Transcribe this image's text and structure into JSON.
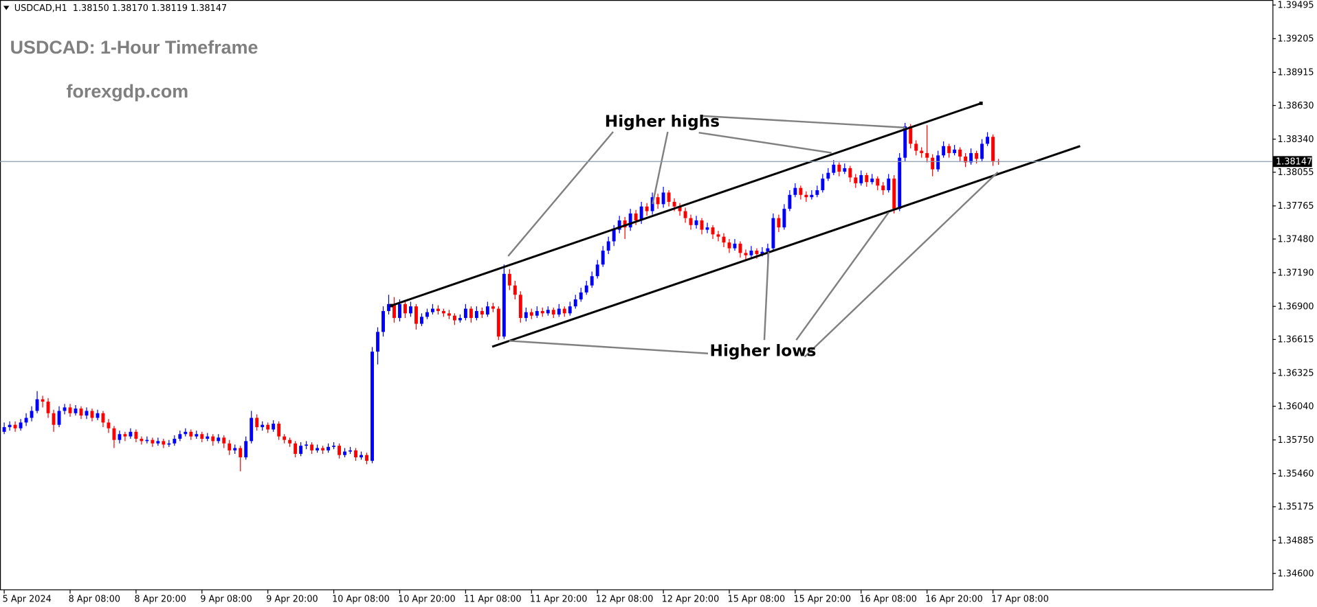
{
  "chart_data": {
    "type": "candlestick",
    "symbol_header": "USDCAD,H1  1.38150 1.38170 1.38119 1.38147",
    "title": "USDCAD: 1-Hour Timeframe",
    "subtitle": "forexgdp.com",
    "annotations": [
      "Higher highs",
      "Higher lows"
    ],
    "current_price": 1.38147,
    "up_color": "#0000ff",
    "down_color": "#ff0000",
    "ylim": [
      1.34456,
      1.39538
    ],
    "yticks": [
      1.39495,
      1.39205,
      1.38915,
      {
        "value": 1.3863,
        "label": "1.38630"
      },
      {
        "value": 1.3834,
        "label": "1.38340"
      },
      1.38055,
      1.37765,
      {
        "value": 1.3748,
        "label": "1.37480"
      },
      {
        "value": 1.3719,
        "label": "1.37190"
      },
      {
        "value": 1.369,
        "label": "1.36900"
      },
      1.36615,
      1.36325,
      {
        "value": 1.3604,
        "label": "1.36040"
      },
      {
        "value": 1.3575,
        "label": "1.35750"
      },
      {
        "value": 1.3546,
        "label": "1.35460"
      },
      1.35175,
      1.34885,
      {
        "value": 1.346,
        "label": "1.34600"
      }
    ],
    "categories": [
      "5 Apr 2024",
      null,
      null,
      null,
      null,
      null,
      null,
      null,
      null,
      null,
      null,
      null,
      "8 Apr 08:00",
      null,
      null,
      null,
      null,
      null,
      null,
      null,
      null,
      null,
      null,
      null,
      "8 Apr 20:00",
      null,
      null,
      null,
      null,
      null,
      null,
      null,
      null,
      null,
      null,
      null,
      "9 Apr 08:00",
      null,
      null,
      null,
      null,
      null,
      null,
      null,
      null,
      null,
      null,
      null,
      "9 Apr 20:00",
      null,
      null,
      null,
      null,
      null,
      null,
      null,
      null,
      null,
      null,
      null,
      "10 Apr 08:00",
      null,
      null,
      null,
      null,
      null,
      null,
      null,
      null,
      null,
      null,
      null,
      "10 Apr 20:00",
      null,
      null,
      null,
      null,
      null,
      null,
      null,
      null,
      null,
      null,
      null,
      "11 Apr 08:00",
      null,
      null,
      null,
      null,
      null,
      null,
      null,
      null,
      null,
      null,
      null,
      "11 Apr 20:00",
      null,
      null,
      null,
      null,
      null,
      null,
      null,
      null,
      null,
      null,
      null,
      "12 Apr 08:00",
      null,
      null,
      null,
      null,
      null,
      null,
      null,
      null,
      null,
      null,
      null,
      "12 Apr 20:00",
      null,
      null,
      null,
      null,
      null,
      null,
      null,
      null,
      null,
      null,
      null,
      "15 Apr 08:00",
      null,
      null,
      null,
      null,
      null,
      null,
      null,
      null,
      null,
      null,
      null,
      "15 Apr 20:00",
      null,
      null,
      null,
      null,
      null,
      null,
      null,
      null,
      null,
      null,
      null,
      "16 Apr 08:00",
      null,
      null,
      null,
      null,
      null,
      null,
      null,
      null,
      null,
      null,
      null,
      "16 Apr 20:00",
      null,
      null,
      null,
      null,
      null,
      null,
      null,
      null,
      null,
      null,
      null,
      "17 Apr 08:00",
      null
    ],
    "ohlc": [
      [
        1.3582,
        1.359,
        1.358,
        1.3586
      ],
      [
        1.3586,
        1.3591,
        1.3583,
        1.3588
      ],
      [
        1.3588,
        1.3591,
        1.3582,
        1.3585
      ],
      [
        1.3585,
        1.3593,
        1.3583,
        1.359
      ],
      [
        1.359,
        1.3598,
        1.3587,
        1.3594
      ],
      [
        1.3594,
        1.3604,
        1.3591,
        1.36
      ],
      [
        1.36,
        1.3617,
        1.3598,
        1.361
      ],
      [
        1.361,
        1.3613,
        1.3603,
        1.3608
      ],
      [
        1.3608,
        1.3611,
        1.3594,
        1.3598
      ],
      [
        1.3598,
        1.3601,
        1.3582,
        1.3588
      ],
      [
        1.3588,
        1.3604,
        1.3586,
        1.36
      ],
      [
        1.36,
        1.3606,
        1.3597,
        1.3603
      ],
      [
        1.3603,
        1.3606,
        1.3595,
        1.3598
      ],
      [
        1.3598,
        1.3605,
        1.3596,
        1.3602
      ],
      [
        1.3602,
        1.3604,
        1.3593,
        1.3596
      ],
      [
        1.3596,
        1.3603,
        1.3593,
        1.36
      ],
      [
        1.36,
        1.3602,
        1.3591,
        1.3594
      ],
      [
        1.3594,
        1.3601,
        1.3592,
        1.3598
      ],
      [
        1.3598,
        1.36,
        1.3586,
        1.359
      ],
      [
        1.359,
        1.3593,
        1.3581,
        1.3585
      ],
      [
        1.3585,
        1.3587,
        1.3568,
        1.3575
      ],
      [
        1.3575,
        1.3583,
        1.3572,
        1.358
      ],
      [
        1.358,
        1.3582,
        1.3574,
        1.3578
      ],
      [
        1.3578,
        1.3585,
        1.3576,
        1.3582
      ],
      [
        1.3582,
        1.3584,
        1.3573,
        1.3576
      ],
      [
        1.3576,
        1.3578,
        1.3571,
        1.3574
      ],
      [
        1.3574,
        1.3578,
        1.3572,
        1.3575
      ],
      [
        1.3575,
        1.3577,
        1.3569,
        1.3572
      ],
      [
        1.3572,
        1.3577,
        1.357,
        1.3574
      ],
      [
        1.3574,
        1.3576,
        1.3568,
        1.3571
      ],
      [
        1.3571,
        1.3575,
        1.3569,
        1.3572
      ],
      [
        1.3572,
        1.3579,
        1.357,
        1.3576
      ],
      [
        1.3576,
        1.3583,
        1.3574,
        1.358
      ],
      [
        1.358,
        1.3585,
        1.3578,
        1.3582
      ],
      [
        1.3582,
        1.3584,
        1.3575,
        1.3578
      ],
      [
        1.3578,
        1.3583,
        1.3576,
        1.358
      ],
      [
        1.358,
        1.3582,
        1.3573,
        1.3576
      ],
      [
        1.3576,
        1.3581,
        1.3574,
        1.3578
      ],
      [
        1.3578,
        1.358,
        1.357,
        1.3574
      ],
      [
        1.3574,
        1.358,
        1.3572,
        1.3577
      ],
      [
        1.3577,
        1.3579,
        1.3568,
        1.3572
      ],
      [
        1.3572,
        1.3575,
        1.3562,
        1.3566
      ],
      [
        1.3566,
        1.3571,
        1.3563,
        1.3568
      ],
      [
        1.3568,
        1.357,
        1.3548,
        1.356
      ],
      [
        1.356,
        1.3578,
        1.3558,
        1.3574
      ],
      [
        1.3574,
        1.36,
        1.3572,
        1.3594
      ],
      [
        1.3594,
        1.3597,
        1.3583,
        1.3586
      ],
      [
        1.3586,
        1.3591,
        1.3583,
        1.3588
      ],
      [
        1.3588,
        1.359,
        1.3581,
        1.3584
      ],
      [
        1.3584,
        1.3592,
        1.3582,
        1.3589
      ],
      [
        1.3589,
        1.3591,
        1.3575,
        1.3578
      ],
      [
        1.3578,
        1.358,
        1.3572,
        1.3575
      ],
      [
        1.3575,
        1.3577,
        1.3569,
        1.3572
      ],
      [
        1.3572,
        1.3574,
        1.356,
        1.3563
      ],
      [
        1.3563,
        1.3573,
        1.3561,
        1.357
      ],
      [
        1.357,
        1.3574,
        1.3567,
        1.3571
      ],
      [
        1.3571,
        1.3573,
        1.3563,
        1.3566
      ],
      [
        1.3566,
        1.3571,
        1.3564,
        1.3568
      ],
      [
        1.3568,
        1.357,
        1.3563,
        1.3566
      ],
      [
        1.3566,
        1.3572,
        1.3564,
        1.3569
      ],
      [
        1.3569,
        1.3573,
        1.3567,
        1.357
      ],
      [
        1.357,
        1.3572,
        1.3559,
        1.3562
      ],
      [
        1.3562,
        1.3568,
        1.356,
        1.3565
      ],
      [
        1.3565,
        1.3569,
        1.3563,
        1.3566
      ],
      [
        1.3566,
        1.3568,
        1.3557,
        1.356
      ],
      [
        1.356,
        1.3565,
        1.3558,
        1.3562
      ],
      [
        1.3562,
        1.3564,
        1.3554,
        1.3557
      ],
      [
        1.3557,
        1.3655,
        1.3555,
        1.3651
      ],
      [
        1.3651,
        1.3672,
        1.364,
        1.3668
      ],
      [
        1.3668,
        1.369,
        1.3664,
        1.3686
      ],
      [
        1.3686,
        1.37,
        1.3683,
        1.3692
      ],
      [
        1.3692,
        1.3698,
        1.3676,
        1.368
      ],
      [
        1.368,
        1.3696,
        1.3677,
        1.3692
      ],
      [
        1.3692,
        1.3695,
        1.368,
        1.3684
      ],
      [
        1.3684,
        1.3694,
        1.3681,
        1.369
      ],
      [
        1.369,
        1.3692,
        1.367,
        1.3675
      ],
      [
        1.3675,
        1.3684,
        1.3673,
        1.3681
      ],
      [
        1.3681,
        1.3688,
        1.3679,
        1.3685
      ],
      [
        1.3685,
        1.3692,
        1.3683,
        1.3688
      ],
      [
        1.3688,
        1.3691,
        1.3683,
        1.3686
      ],
      [
        1.3686,
        1.3688,
        1.3681,
        1.3684
      ],
      [
        1.3684,
        1.3687,
        1.3679,
        1.3682
      ],
      [
        1.3682,
        1.3684,
        1.3674,
        1.3678
      ],
      [
        1.3678,
        1.3683,
        1.3676,
        1.368
      ],
      [
        1.368,
        1.3692,
        1.3678,
        1.3688
      ],
      [
        1.3688,
        1.369,
        1.3676,
        1.368
      ],
      [
        1.368,
        1.369,
        1.3678,
        1.3686
      ],
      [
        1.3686,
        1.3689,
        1.368,
        1.3683
      ],
      [
        1.3683,
        1.3694,
        1.3681,
        1.369
      ],
      [
        1.369,
        1.3693,
        1.3685,
        1.3688
      ],
      [
        1.3688,
        1.369,
        1.3661,
        1.3664
      ],
      [
        1.3664,
        1.3726,
        1.3662,
        1.3718
      ],
      [
        1.3718,
        1.3722,
        1.3704,
        1.3708
      ],
      [
        1.3708,
        1.3712,
        1.3696,
        1.37
      ],
      [
        1.37,
        1.3703,
        1.3676,
        1.368
      ],
      [
        1.368,
        1.3689,
        1.3677,
        1.3685
      ],
      [
        1.3685,
        1.3688,
        1.3679,
        1.3682
      ],
      [
        1.3682,
        1.369,
        1.368,
        1.3686
      ],
      [
        1.3686,
        1.3689,
        1.3681,
        1.3684
      ],
      [
        1.3684,
        1.369,
        1.3682,
        1.3687
      ],
      [
        1.3687,
        1.3689,
        1.368,
        1.3683
      ],
      [
        1.3683,
        1.3692,
        1.3681,
        1.3688
      ],
      [
        1.3688,
        1.369,
        1.3681,
        1.3684
      ],
      [
        1.3684,
        1.3694,
        1.3682,
        1.369
      ],
      [
        1.369,
        1.37,
        1.3688,
        1.3696
      ],
      [
        1.3696,
        1.3706,
        1.3694,
        1.3702
      ],
      [
        1.3702,
        1.3712,
        1.37,
        1.3708
      ],
      [
        1.3708,
        1.372,
        1.3706,
        1.3716
      ],
      [
        1.3716,
        1.373,
        1.3714,
        1.3726
      ],
      [
        1.3726,
        1.3742,
        1.3724,
        1.3738
      ],
      [
        1.3738,
        1.375,
        1.3735,
        1.3746
      ],
      [
        1.3746,
        1.376,
        1.3742,
        1.3756
      ],
      [
        1.3756,
        1.3768,
        1.3753,
        1.3764
      ],
      [
        1.3764,
        1.3767,
        1.3748,
        1.3758
      ],
      [
        1.3758,
        1.3774,
        1.3755,
        1.377
      ],
      [
        1.377,
        1.3773,
        1.376,
        1.3764
      ],
      [
        1.3764,
        1.378,
        1.3761,
        1.3776
      ],
      [
        1.3776,
        1.3779,
        1.3768,
        1.3772
      ],
      [
        1.3772,
        1.3788,
        1.3769,
        1.3784
      ],
      [
        1.3784,
        1.3787,
        1.3774,
        1.3778
      ],
      [
        1.3778,
        1.3793,
        1.3775,
        1.3788
      ],
      [
        1.3788,
        1.379,
        1.3776,
        1.378
      ],
      [
        1.378,
        1.3783,
        1.3772,
        1.3776
      ],
      [
        1.3776,
        1.3779,
        1.3768,
        1.3772
      ],
      [
        1.3772,
        1.3775,
        1.3762,
        1.3766
      ],
      [
        1.3766,
        1.3769,
        1.3756,
        1.376
      ],
      [
        1.376,
        1.3768,
        1.3757,
        1.3764
      ],
      [
        1.3764,
        1.3766,
        1.3752,
        1.3756
      ],
      [
        1.3756,
        1.3762,
        1.3753,
        1.3758
      ],
      [
        1.3758,
        1.376,
        1.3748,
        1.3752
      ],
      [
        1.3752,
        1.3755,
        1.3746,
        1.375
      ],
      [
        1.375,
        1.3753,
        1.3741,
        1.3745
      ],
      [
        1.3745,
        1.3748,
        1.3736,
        1.374
      ],
      [
        1.374,
        1.3748,
        1.3738,
        1.3744
      ],
      [
        1.3744,
        1.3746,
        1.3732,
        1.3736
      ],
      [
        1.3736,
        1.3739,
        1.373,
        1.3734
      ],
      [
        1.3734,
        1.3742,
        1.3732,
        1.3738
      ],
      [
        1.3738,
        1.374,
        1.3731,
        1.3735
      ],
      [
        1.3735,
        1.3741,
        1.3733,
        1.3737
      ],
      [
        1.3737,
        1.3744,
        1.3725,
        1.374
      ],
      [
        1.374,
        1.377,
        1.3738,
        1.3766
      ],
      [
        1.3766,
        1.3769,
        1.3754,
        1.3758
      ],
      [
        1.3758,
        1.3778,
        1.3756,
        1.3774
      ],
      [
        1.3774,
        1.379,
        1.3772,
        1.3786
      ],
      [
        1.3786,
        1.3796,
        1.3784,
        1.3792
      ],
      [
        1.3792,
        1.3794,
        1.3782,
        1.3786
      ],
      [
        1.3786,
        1.3789,
        1.378,
        1.3784
      ],
      [
        1.3784,
        1.379,
        1.3782,
        1.3786
      ],
      [
        1.3786,
        1.3794,
        1.3784,
        1.379
      ],
      [
        1.379,
        1.3804,
        1.3788,
        1.38
      ],
      [
        1.38,
        1.3809,
        1.3798,
        1.3805
      ],
      [
        1.3805,
        1.3816,
        1.3803,
        1.3812
      ],
      [
        1.3812,
        1.3814,
        1.3802,
        1.3806
      ],
      [
        1.3806,
        1.3813,
        1.3804,
        1.3809
      ],
      [
        1.3809,
        1.3811,
        1.3797,
        1.3801
      ],
      [
        1.3801,
        1.3804,
        1.3792,
        1.3796
      ],
      [
        1.3796,
        1.3807,
        1.3794,
        1.3803
      ],
      [
        1.3803,
        1.3805,
        1.3793,
        1.3797
      ],
      [
        1.3797,
        1.3804,
        1.3795,
        1.38
      ],
      [
        1.38,
        1.3802,
        1.379,
        1.3794
      ],
      [
        1.3794,
        1.3797,
        1.3786,
        1.379
      ],
      [
        1.379,
        1.3804,
        1.3788,
        1.38
      ],
      [
        1.38,
        1.3803,
        1.377,
        1.3774
      ],
      [
        1.3774,
        1.3822,
        1.3772,
        1.3818
      ],
      [
        1.3818,
        1.3848,
        1.3815,
        1.3845
      ],
      [
        1.3845,
        1.3847,
        1.3826,
        1.383
      ],
      [
        1.383,
        1.3833,
        1.382,
        1.3824
      ],
      [
        1.3824,
        1.3827,
        1.3818,
        1.3822
      ],
      [
        1.3822,
        1.3846,
        1.3814,
        1.3818
      ],
      [
        1.3818,
        1.3821,
        1.3802,
        1.3808
      ],
      [
        1.3808,
        1.3824,
        1.3806,
        1.382
      ],
      [
        1.382,
        1.3832,
        1.3818,
        1.3828
      ],
      [
        1.3828,
        1.383,
        1.3818,
        1.3822
      ],
      [
        1.3822,
        1.3829,
        1.382,
        1.3825
      ],
      [
        1.3825,
        1.3827,
        1.3815,
        1.3819
      ],
      [
        1.3819,
        1.3822,
        1.381,
        1.3814
      ],
      [
        1.3814,
        1.3826,
        1.3812,
        1.3822
      ],
      [
        1.3822,
        1.3824,
        1.3813,
        1.3817
      ],
      [
        1.3817,
        1.3834,
        1.3815,
        1.383
      ],
      [
        1.383,
        1.384,
        1.3828,
        1.3836
      ],
      [
        1.3836,
        1.3838,
        1.3811,
        1.3815
      ],
      [
        1.3815,
        1.3817,
        1.38119,
        1.38147
      ]
    ]
  }
}
